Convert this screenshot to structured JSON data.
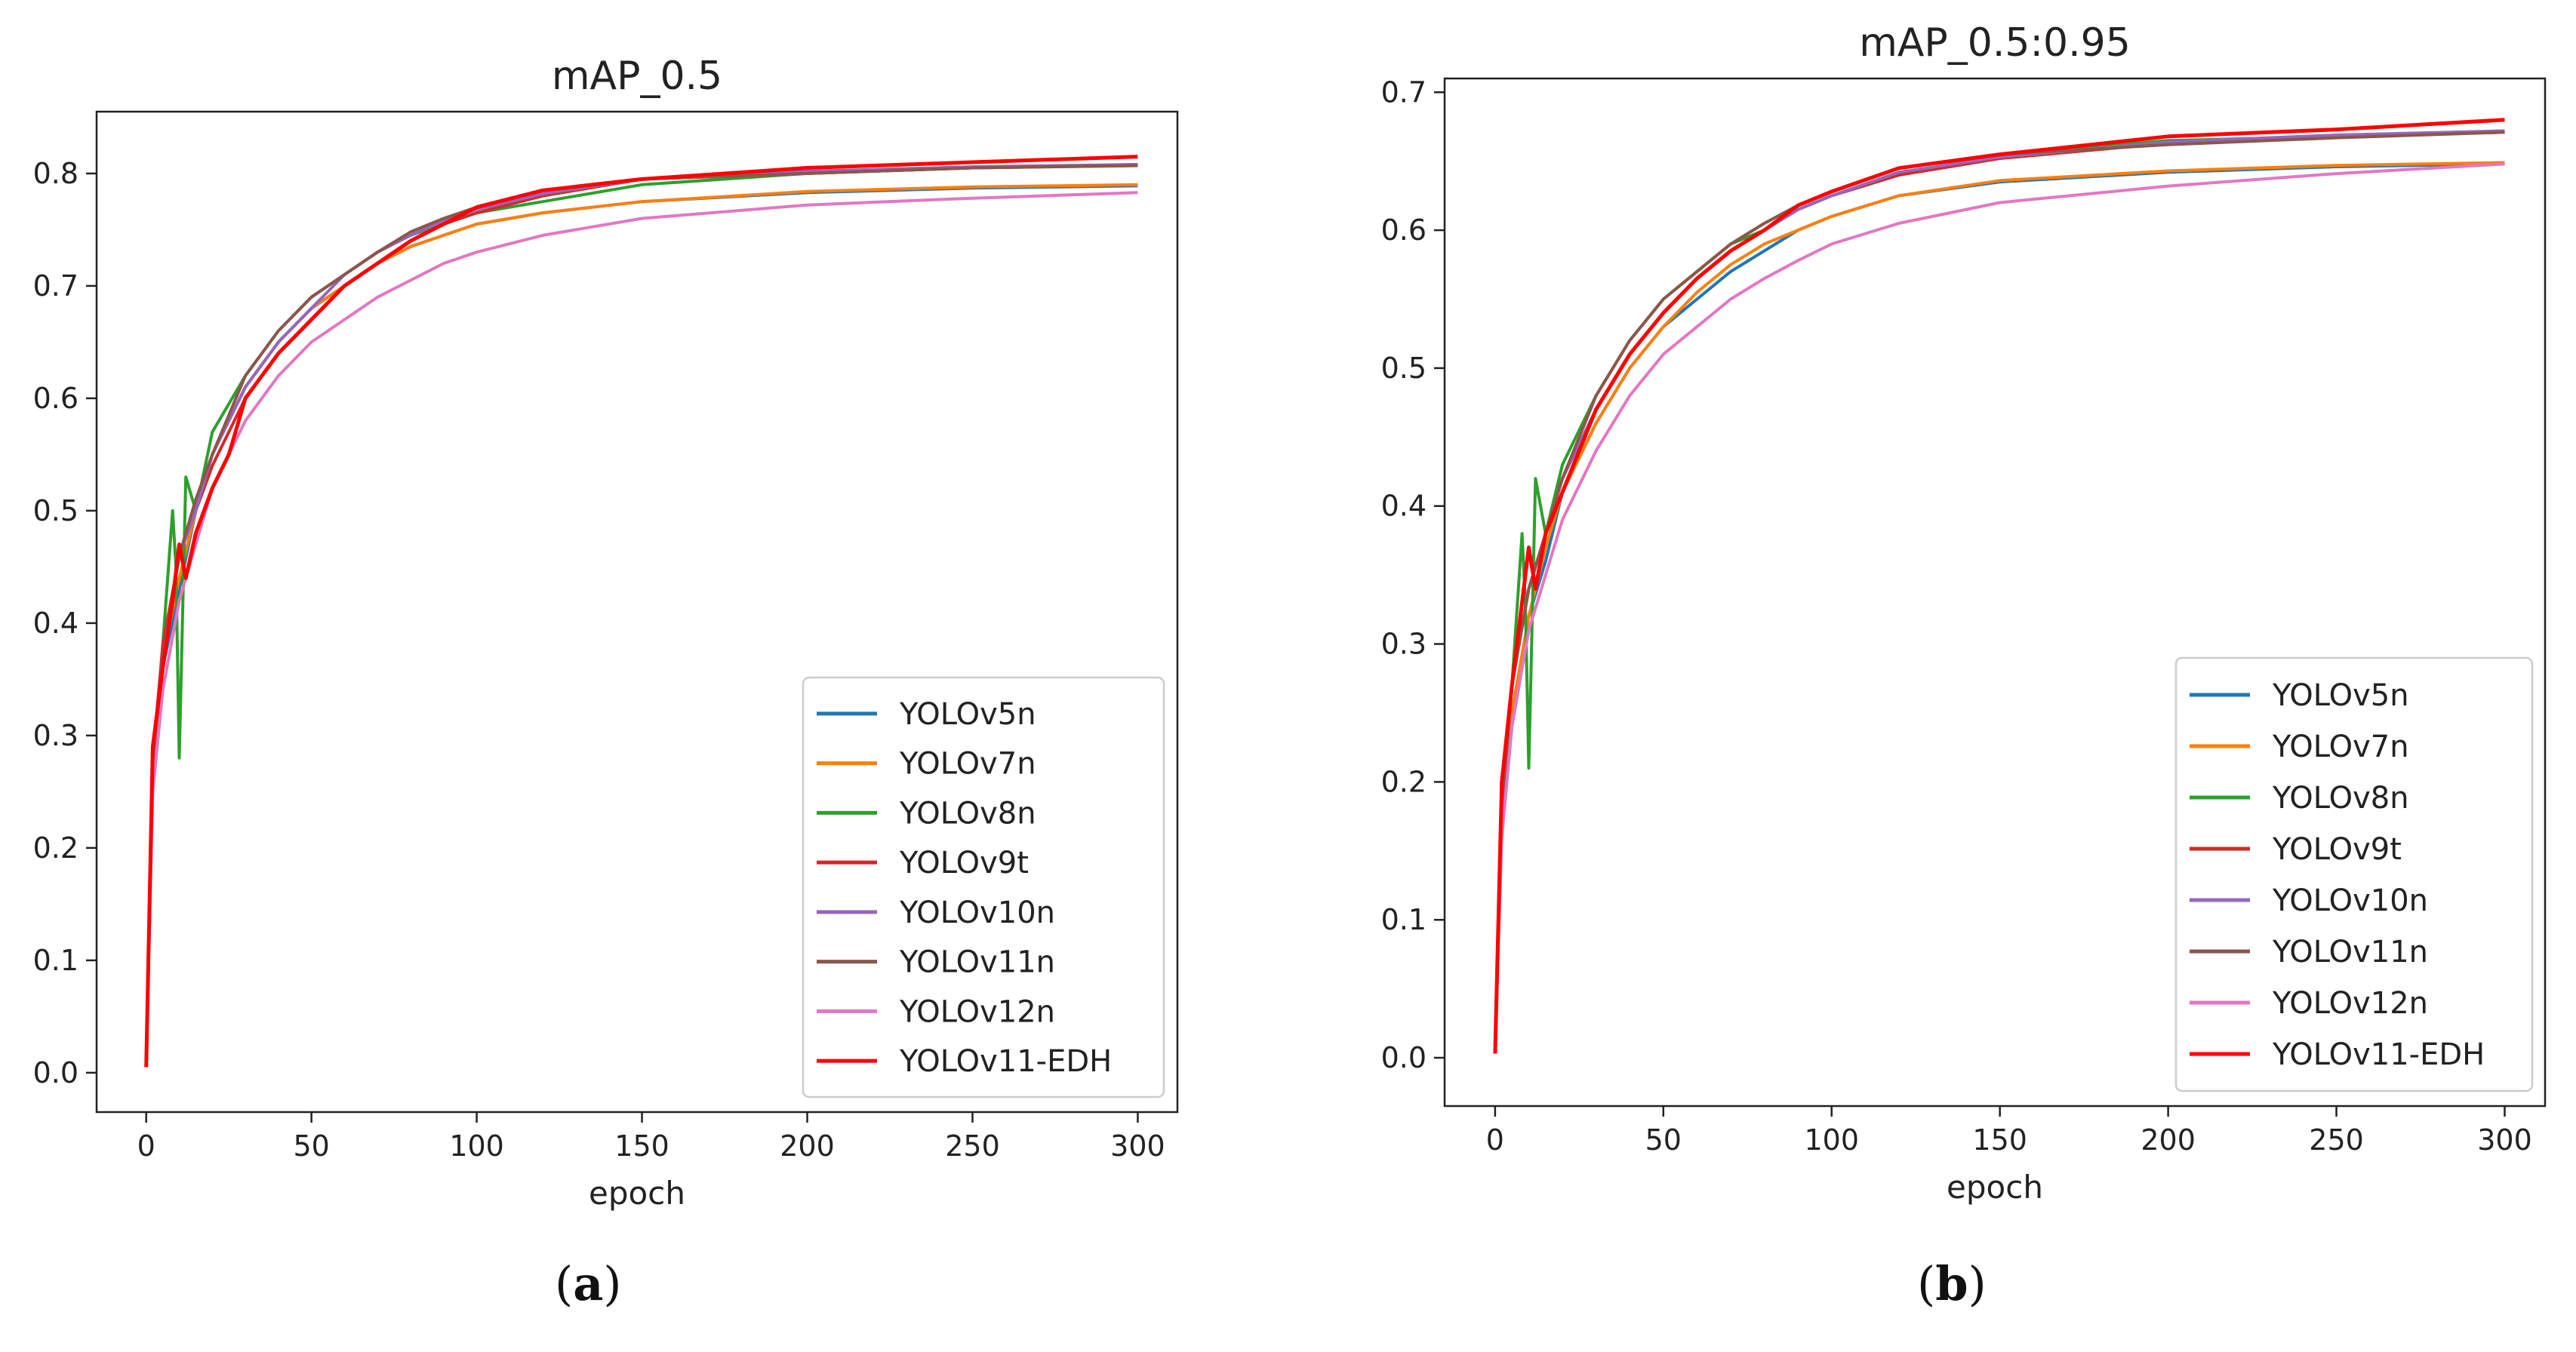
{
  "colors": {
    "YOLOv5n": "#1f77b4",
    "YOLOv7n": "#ff7f0e",
    "YOLOv8n": "#2ca02c",
    "YOLOv9t": "#d62728",
    "YOLOv10n": "#9467bd",
    "YOLOv11n": "#8c564b",
    "YOLOv12n": "#e377c2",
    "YOLOv11-EDH": "#ff0000"
  },
  "captions": {
    "a": "a",
    "b": "b"
  },
  "chart_data": [
    {
      "type": "line",
      "title": "mAP_0.5",
      "xlabel": "epoch",
      "ylabel": "",
      "xlim": [
        -15,
        312
      ],
      "ylim": [
        -0.035,
        0.855
      ],
      "xticks": [
        0,
        50,
        100,
        150,
        200,
        250,
        300
      ],
      "yticks": [
        0.0,
        0.1,
        0.2,
        0.3,
        0.4,
        0.5,
        0.6,
        0.7,
        0.8
      ],
      "ytick_labels": [
        "0.0",
        "0.1",
        "0.2",
        "0.3",
        "0.4",
        "0.5",
        "0.6",
        "0.7",
        "0.8"
      ],
      "legend_position": "lower-right",
      "grid": false,
      "series": [
        {
          "name": "YOLOv5n",
          "x": [
            0,
            2,
            5,
            10,
            15,
            20,
            30,
            40,
            50,
            60,
            70,
            80,
            90,
            100,
            120,
            150,
            200,
            250,
            300
          ],
          "values": [
            0.01,
            0.26,
            0.36,
            0.43,
            0.5,
            0.55,
            0.61,
            0.65,
            0.68,
            0.7,
            0.72,
            0.735,
            0.745,
            0.755,
            0.765,
            0.775,
            0.783,
            0.787,
            0.789
          ]
        },
        {
          "name": "YOLOv7n",
          "x": [
            0,
            2,
            5,
            10,
            15,
            20,
            30,
            40,
            50,
            60,
            70,
            80,
            90,
            100,
            120,
            150,
            200,
            250,
            300
          ],
          "values": [
            0.01,
            0.26,
            0.37,
            0.44,
            0.5,
            0.55,
            0.61,
            0.65,
            0.68,
            0.7,
            0.72,
            0.735,
            0.745,
            0.755,
            0.765,
            0.775,
            0.784,
            0.788,
            0.79
          ]
        },
        {
          "name": "YOLOv8n",
          "x": [
            0,
            2,
            5,
            8,
            9,
            10,
            12,
            15,
            20,
            30,
            40,
            50,
            60,
            70,
            80,
            90,
            100,
            120,
            150,
            200,
            250,
            300
          ],
          "values": [
            0.01,
            0.27,
            0.38,
            0.5,
            0.45,
            0.28,
            0.53,
            0.5,
            0.57,
            0.62,
            0.66,
            0.69,
            0.71,
            0.73,
            0.745,
            0.755,
            0.765,
            0.775,
            0.79,
            0.8,
            0.805,
            0.807
          ]
        },
        {
          "name": "YOLOv9t",
          "x": [
            0,
            2,
            5,
            10,
            15,
            20,
            30,
            40,
            50,
            60,
            70,
            80,
            90,
            100,
            120,
            150,
            200,
            250,
            300
          ],
          "values": [
            0.01,
            0.28,
            0.38,
            0.46,
            0.5,
            0.54,
            0.6,
            0.64,
            0.67,
            0.7,
            0.72,
            0.74,
            0.755,
            0.765,
            0.78,
            0.795,
            0.8,
            0.805,
            0.808
          ]
        },
        {
          "name": "YOLOv10n",
          "x": [
            0,
            2,
            5,
            10,
            15,
            20,
            30,
            40,
            50,
            60,
            70,
            80,
            90,
            100,
            120,
            150,
            200,
            250,
            300
          ],
          "values": [
            0.01,
            0.27,
            0.37,
            0.46,
            0.5,
            0.55,
            0.61,
            0.65,
            0.68,
            0.71,
            0.73,
            0.745,
            0.758,
            0.768,
            0.782,
            0.795,
            0.802,
            0.806,
            0.808
          ]
        },
        {
          "name": "YOLOv11n",
          "x": [
            0,
            2,
            5,
            10,
            15,
            20,
            30,
            40,
            50,
            60,
            70,
            80,
            90,
            100,
            120,
            150,
            200,
            250,
            300
          ],
          "values": [
            0.01,
            0.27,
            0.37,
            0.46,
            0.51,
            0.55,
            0.62,
            0.66,
            0.69,
            0.71,
            0.73,
            0.748,
            0.76,
            0.77,
            0.785,
            0.795,
            0.8,
            0.805,
            0.807
          ]
        },
        {
          "name": "YOLOv12n",
          "x": [
            0,
            2,
            5,
            10,
            15,
            20,
            30,
            40,
            50,
            60,
            70,
            80,
            90,
            100,
            120,
            150,
            200,
            250,
            300
          ],
          "values": [
            0.01,
            0.25,
            0.34,
            0.42,
            0.47,
            0.52,
            0.58,
            0.62,
            0.65,
            0.67,
            0.69,
            0.705,
            0.72,
            0.73,
            0.745,
            0.76,
            0.772,
            0.778,
            0.783
          ]
        },
        {
          "name": "YOLOv11-EDH",
          "x": [
            0,
            2,
            5,
            8,
            10,
            12,
            15,
            20,
            25,
            30,
            40,
            50,
            60,
            70,
            80,
            90,
            100,
            120,
            150,
            200,
            250,
            300
          ],
          "values": [
            0.005,
            0.29,
            0.36,
            0.42,
            0.47,
            0.44,
            0.48,
            0.52,
            0.55,
            0.6,
            0.64,
            0.67,
            0.7,
            0.72,
            0.74,
            0.755,
            0.77,
            0.785,
            0.795,
            0.805,
            0.81,
            0.815
          ]
        }
      ]
    },
    {
      "type": "line",
      "title": "mAP_0.5:0.95",
      "xlabel": "epoch",
      "ylabel": "",
      "xlim": [
        -15,
        312
      ],
      "ylim": [
        -0.035,
        0.71
      ],
      "xticks": [
        0,
        50,
        100,
        150,
        200,
        250,
        300
      ],
      "yticks": [
        0.0,
        0.1,
        0.2,
        0.3,
        0.4,
        0.5,
        0.6,
        0.7
      ],
      "ytick_labels": [
        "0.0",
        "0.1",
        "0.2",
        "0.3",
        "0.4",
        "0.5",
        "0.6",
        "0.7"
      ],
      "legend_position": "lower-right",
      "grid": false,
      "series": [
        {
          "name": "YOLOv5n",
          "x": [
            0,
            2,
            5,
            10,
            15,
            20,
            30,
            40,
            50,
            60,
            70,
            80,
            90,
            100,
            120,
            150,
            200,
            250,
            300
          ],
          "values": [
            0.005,
            0.17,
            0.25,
            0.32,
            0.36,
            0.41,
            0.46,
            0.5,
            0.53,
            0.55,
            0.57,
            0.585,
            0.6,
            0.61,
            0.625,
            0.635,
            0.642,
            0.646,
            0.648
          ]
        },
        {
          "name": "YOLOv7n",
          "x": [
            0,
            2,
            5,
            10,
            15,
            20,
            30,
            40,
            50,
            60,
            70,
            80,
            90,
            100,
            120,
            150,
            200,
            250,
            300
          ],
          "values": [
            0.005,
            0.17,
            0.25,
            0.32,
            0.37,
            0.41,
            0.46,
            0.5,
            0.53,
            0.555,
            0.575,
            0.59,
            0.6,
            0.61,
            0.625,
            0.636,
            0.643,
            0.647,
            0.649
          ]
        },
        {
          "name": "YOLOv8n",
          "x": [
            0,
            2,
            5,
            8,
            9,
            10,
            12,
            15,
            20,
            30,
            40,
            50,
            60,
            70,
            80,
            90,
            100,
            120,
            150,
            200,
            250,
            300
          ],
          "values": [
            0.005,
            0.18,
            0.27,
            0.38,
            0.33,
            0.21,
            0.42,
            0.38,
            0.43,
            0.48,
            0.52,
            0.55,
            0.57,
            0.59,
            0.6,
            0.615,
            0.625,
            0.64,
            0.655,
            0.665,
            0.668,
            0.671
          ]
        },
        {
          "name": "YOLOv9t",
          "x": [
            0,
            2,
            5,
            10,
            15,
            20,
            30,
            40,
            50,
            60,
            70,
            80,
            90,
            100,
            120,
            150,
            200,
            250,
            300
          ],
          "values": [
            0.005,
            0.19,
            0.27,
            0.34,
            0.38,
            0.42,
            0.47,
            0.51,
            0.54,
            0.565,
            0.585,
            0.6,
            0.615,
            0.625,
            0.64,
            0.652,
            0.663,
            0.668,
            0.672
          ]
        },
        {
          "name": "YOLOv10n",
          "x": [
            0,
            2,
            5,
            10,
            15,
            20,
            30,
            40,
            50,
            60,
            70,
            80,
            90,
            100,
            120,
            150,
            200,
            250,
            300
          ],
          "values": [
            0.005,
            0.18,
            0.27,
            0.34,
            0.38,
            0.42,
            0.47,
            0.51,
            0.54,
            0.565,
            0.585,
            0.6,
            0.615,
            0.625,
            0.642,
            0.653,
            0.664,
            0.669,
            0.672
          ]
        },
        {
          "name": "YOLOv11n",
          "x": [
            0,
            2,
            5,
            10,
            15,
            20,
            30,
            40,
            50,
            60,
            70,
            80,
            90,
            100,
            120,
            150,
            200,
            250,
            300
          ],
          "values": [
            0.005,
            0.18,
            0.27,
            0.34,
            0.38,
            0.42,
            0.48,
            0.52,
            0.55,
            0.57,
            0.59,
            0.605,
            0.618,
            0.628,
            0.645,
            0.655,
            0.662,
            0.667,
            0.671
          ]
        },
        {
          "name": "YOLOv12n",
          "x": [
            0,
            2,
            5,
            10,
            15,
            20,
            30,
            40,
            50,
            60,
            70,
            80,
            90,
            100,
            120,
            150,
            200,
            250,
            300
          ],
          "values": [
            0.005,
            0.16,
            0.24,
            0.31,
            0.35,
            0.39,
            0.44,
            0.48,
            0.51,
            0.53,
            0.55,
            0.565,
            0.578,
            0.59,
            0.605,
            0.62,
            0.632,
            0.641,
            0.648
          ]
        },
        {
          "name": "YOLOv11-EDH",
          "x": [
            0,
            2,
            5,
            8,
            10,
            12,
            15,
            20,
            25,
            30,
            40,
            50,
            60,
            70,
            80,
            90,
            100,
            120,
            150,
            200,
            250,
            300
          ],
          "values": [
            0.003,
            0.2,
            0.27,
            0.33,
            0.37,
            0.34,
            0.38,
            0.41,
            0.44,
            0.47,
            0.51,
            0.54,
            0.565,
            0.585,
            0.6,
            0.618,
            0.628,
            0.645,
            0.655,
            0.668,
            0.673,
            0.68
          ]
        }
      ]
    }
  ]
}
